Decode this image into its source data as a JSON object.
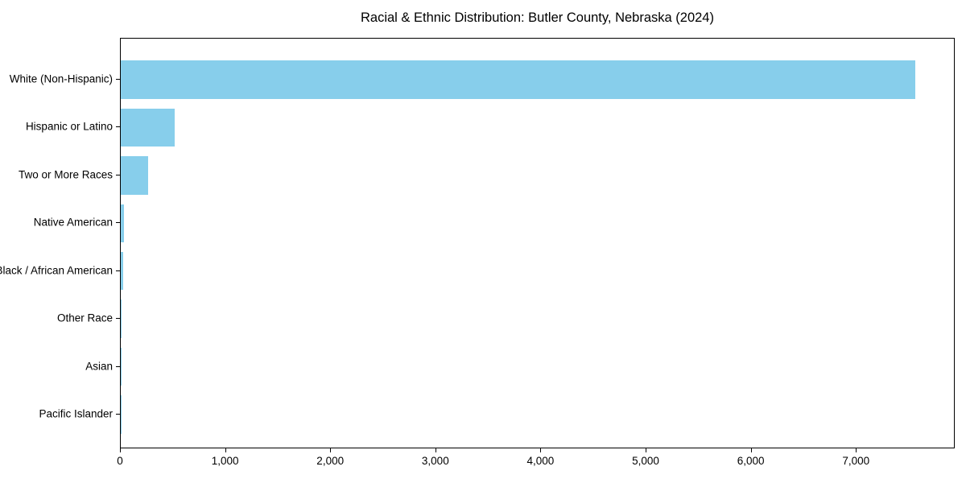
{
  "title": "Racial & Ethnic Distribution: Butler County, Nebraska (2024)",
  "colors": {
    "bar": "#87CEEB",
    "axis": "#000000",
    "text": "#000000",
    "background": "#FFFFFF"
  },
  "chart_data": {
    "type": "bar",
    "orientation": "horizontal",
    "title": "Racial & Ethnic Distribution: Butler County, Nebraska (2024)",
    "categories": [
      "White (Non-Hispanic)",
      "Hispanic or Latino",
      "Two or More Races",
      "Native American",
      "Black / African American",
      "Other Race",
      "Asian",
      "Pacific Islander"
    ],
    "values": [
      7560,
      510,
      260,
      28,
      20,
      8,
      5,
      2
    ],
    "xlabel": "",
    "ylabel": "",
    "xlim": [
      0,
      7940
    ],
    "xticks": [
      0,
      1000,
      2000,
      3000,
      4000,
      5000,
      6000,
      7000
    ],
    "xtick_labels": [
      "0",
      "1,000",
      "2,000",
      "3,000",
      "4,000",
      "5,000",
      "6,000",
      "7,000"
    ],
    "grid": false,
    "legend": null,
    "bar_color": "#87CEEB"
  }
}
